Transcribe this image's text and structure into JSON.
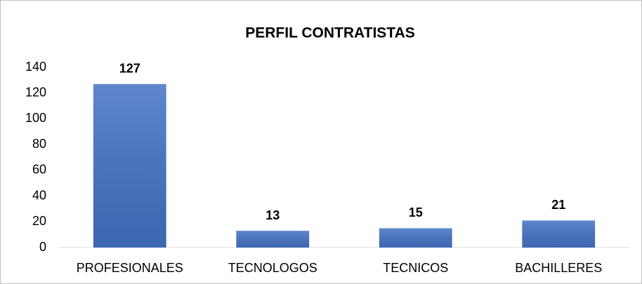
{
  "chart_data": {
    "type": "bar",
    "title": "PERFIL CONTRATISTAS",
    "categories": [
      "PROFESIONALES",
      "TECNOLOGOS",
      "TECNICOS",
      "BACHILLERES"
    ],
    "values": [
      127,
      13,
      15,
      21
    ],
    "color": "#4472c4",
    "ylim": [
      0,
      140
    ],
    "yticks": [
      0,
      20,
      40,
      60,
      80,
      100,
      120,
      140
    ],
    "grid": false
  }
}
